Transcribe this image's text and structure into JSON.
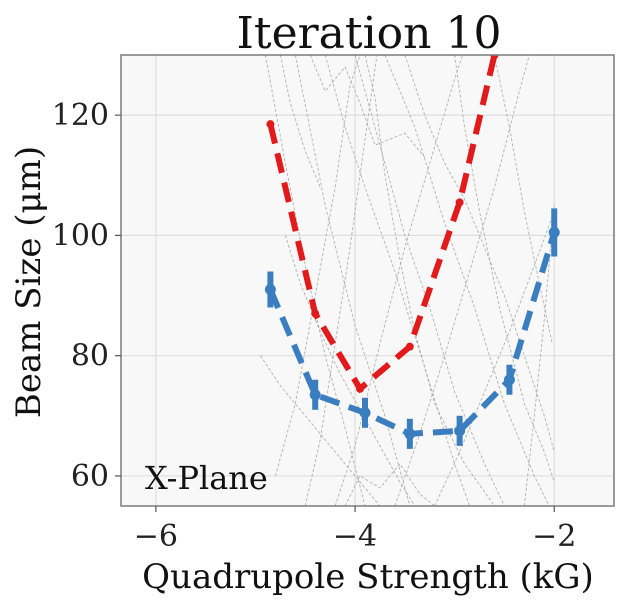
{
  "chart_data": {
    "type": "line",
    "title": "Iteration 10",
    "xlabel": "Quadrupole Strength (kG)",
    "ylabel": "Beam Size (μm)",
    "annotation": "X-Plane",
    "xlim": [
      -6.35,
      -1.4
    ],
    "ylim": [
      55,
      130
    ],
    "xticks": [
      -6,
      -4,
      -2
    ],
    "xtick_labels": [
      "−6",
      "−4",
      "−2"
    ],
    "yticks": [
      60,
      80,
      100,
      120
    ],
    "ytick_labels": [
      "60",
      "80",
      "100",
      "120"
    ],
    "grid": true,
    "series": [
      {
        "name": "red-series",
        "color": "#e31a1c",
        "style": "dashed",
        "x": [
          -4.85,
          -4.4,
          -3.95,
          -3.45,
          -2.95,
          -2.6
        ],
        "y": [
          118.5,
          87,
          74.5,
          81.5,
          105.5,
          130
        ]
      },
      {
        "name": "blue-series",
        "color": "#3a7ebf",
        "style": "dashed",
        "x": [
          -4.85,
          -4.4,
          -3.9,
          -3.45,
          -2.95,
          -2.45,
          -2.0
        ],
        "y": [
          91,
          73.5,
          70.5,
          67,
          67.5,
          76,
          100.5
        ],
        "err": [
          3.0,
          2.5,
          2.5,
          2.5,
          2.5,
          2.5,
          4.0
        ]
      }
    ],
    "background_traces": [
      [
        [
          -4.9,
          130
        ],
        [
          -4.7,
          112
        ],
        [
          -4.5,
          95
        ],
        [
          -4.3,
          80
        ],
        [
          -4.1,
          68
        ],
        [
          -3.9,
          55
        ]
      ],
      [
        [
          -4.6,
          130
        ],
        [
          -4.3,
          105
        ],
        [
          -4.0,
          85
        ],
        [
          -3.7,
          70
        ],
        [
          -3.45,
          55
        ]
      ],
      [
        [
          -4.3,
          130
        ],
        [
          -4.1,
          118
        ],
        [
          -3.9,
          108
        ],
        [
          -3.6,
          94
        ],
        [
          -3.3,
          78
        ],
        [
          -3.0,
          62
        ],
        [
          -2.85,
          55
        ]
      ],
      [
        [
          -4.0,
          130
        ],
        [
          -3.7,
          112
        ],
        [
          -3.5,
          100
        ],
        [
          -3.25,
          88
        ],
        [
          -3.0,
          74
        ],
        [
          -2.7,
          62
        ],
        [
          -2.5,
          55
        ]
      ],
      [
        [
          -3.7,
          130
        ],
        [
          -3.4,
          118
        ],
        [
          -3.1,
          102
        ],
        [
          -2.8,
          88
        ],
        [
          -2.5,
          72
        ],
        [
          -2.2,
          60
        ],
        [
          -2.05,
          55
        ]
      ],
      [
        [
          -4.45,
          130
        ],
        [
          -4.3,
          124
        ],
        [
          -4.1,
          128
        ],
        [
          -3.95,
          122
        ],
        [
          -3.8,
          115
        ],
        [
          -3.5,
          117
        ],
        [
          -3.3,
          113
        ]
      ],
      [
        [
          -4.8,
          60
        ],
        [
          -4.6,
          72
        ],
        [
          -4.4,
          90
        ],
        [
          -4.2,
          108
        ],
        [
          -4.05,
          125
        ],
        [
          -3.95,
          130
        ]
      ],
      [
        [
          -4.2,
          55
        ],
        [
          -4.0,
          65
        ],
        [
          -3.75,
          82
        ],
        [
          -3.5,
          98
        ],
        [
          -3.25,
          112
        ],
        [
          -3.0,
          126
        ],
        [
          -2.92,
          130
        ]
      ],
      [
        [
          -3.6,
          55
        ],
        [
          -3.35,
          67
        ],
        [
          -3.1,
          80
        ],
        [
          -2.85,
          94
        ],
        [
          -2.6,
          108
        ],
        [
          -2.35,
          124
        ],
        [
          -2.25,
          130
        ]
      ],
      [
        [
          -3.2,
          55
        ],
        [
          -2.95,
          64
        ],
        [
          -2.7,
          74
        ],
        [
          -2.45,
          84
        ],
        [
          -2.2,
          95
        ],
        [
          -2.0,
          104
        ]
      ],
      [
        [
          -4.7,
          100
        ],
        [
          -4.55,
          92
        ],
        [
          -4.35,
          84
        ],
        [
          -4.15,
          77
        ],
        [
          -3.85,
          68
        ],
        [
          -3.55,
          59
        ],
        [
          -3.4,
          55
        ]
      ],
      [
        [
          -3.0,
          130
        ],
        [
          -2.9,
          118
        ],
        [
          -2.75,
          104
        ],
        [
          -2.55,
          88
        ],
        [
          -2.3,
          72
        ],
        [
          -2.1,
          64
        ],
        [
          -2.0,
          59
        ]
      ],
      [
        [
          -4.5,
          55
        ],
        [
          -4.35,
          66
        ],
        [
          -4.2,
          82
        ],
        [
          -4.05,
          98
        ],
        [
          -3.9,
          116
        ],
        [
          -3.78,
          130
        ]
      ],
      [
        [
          -3.9,
          130
        ],
        [
          -3.8,
          123
        ],
        [
          -3.7,
          110
        ],
        [
          -3.55,
          96
        ],
        [
          -3.4,
          84
        ],
        [
          -3.2,
          72
        ],
        [
          -2.9,
          62
        ],
        [
          -2.6,
          55
        ]
      ],
      [
        [
          -2.3,
          55
        ],
        [
          -2.2,
          70
        ],
        [
          -2.1,
          86
        ],
        [
          -2.0,
          105
        ]
      ],
      [
        [
          -4.95,
          80
        ],
        [
          -4.75,
          75
        ],
        [
          -4.5,
          70
        ],
        [
          -4.2,
          64
        ],
        [
          -3.9,
          58
        ],
        [
          -3.75,
          55
        ]
      ],
      [
        [
          -4.75,
          130
        ],
        [
          -4.65,
          122
        ],
        [
          -4.5,
          114
        ],
        [
          -4.35,
          108
        ]
      ],
      [
        [
          -3.5,
          130
        ],
        [
          -3.3,
          120
        ],
        [
          -3.1,
          112
        ],
        [
          -2.9,
          106
        ],
        [
          -2.7,
          98
        ],
        [
          -2.5,
          90
        ],
        [
          -2.3,
          80
        ],
        [
          -2.1,
          70
        ],
        [
          -2.0,
          64
        ]
      ],
      [
        [
          -4.1,
          55
        ],
        [
          -3.95,
          60
        ],
        [
          -3.75,
          58
        ],
        [
          -3.55,
          62
        ],
        [
          -3.35,
          57
        ],
        [
          -3.2,
          55
        ]
      ],
      [
        [
          -2.6,
          130
        ],
        [
          -2.45,
          118
        ],
        [
          -2.3,
          104
        ],
        [
          -2.15,
          92
        ],
        [
          -2.02,
          82
        ]
      ]
    ]
  }
}
